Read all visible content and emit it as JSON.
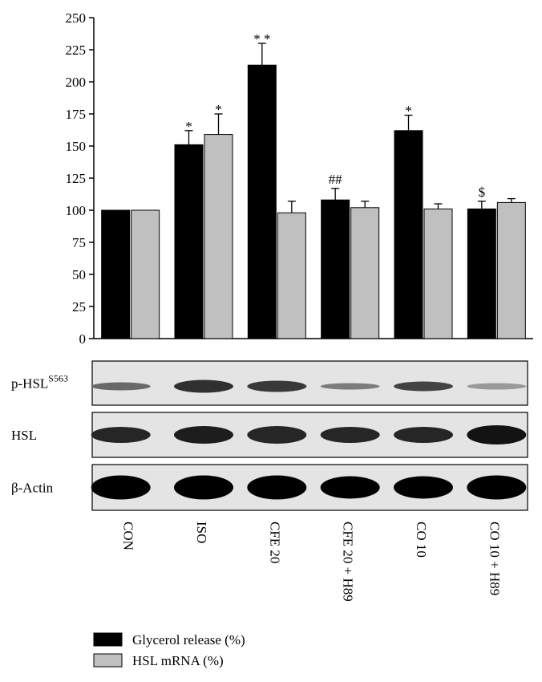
{
  "chart_data": {
    "type": "bar",
    "categories": [
      "CON",
      "ISO",
      "CFE 20",
      "CFE 20 + H89",
      "CO 10",
      "CO 10 + H89"
    ],
    "series": [
      {
        "name": "Glycerol release (%)",
        "color": "#000000",
        "values": [
          100,
          151,
          213,
          108,
          162,
          101
        ],
        "errors": [
          0,
          11,
          17,
          9,
          12,
          6
        ]
      },
      {
        "name": "HSL mRNA (%)",
        "color": "#c0c0c0",
        "values": [
          100,
          159,
          98,
          102,
          101,
          106
        ],
        "errors": [
          0,
          16,
          9,
          5,
          4,
          3
        ]
      }
    ],
    "annotations": [
      {
        "text": "*",
        "series": 0,
        "category": 1
      },
      {
        "text": "*",
        "series": 1,
        "category": 1
      },
      {
        "text": "* *",
        "series": 0,
        "category": 2
      },
      {
        "text": "##",
        "series": 0,
        "category": 3
      },
      {
        "text": "*",
        "series": 0,
        "category": 4
      },
      {
        "text": "$",
        "series": 0,
        "category": 5
      }
    ],
    "ylim": [
      0,
      250
    ],
    "yticks": [
      0,
      25,
      50,
      75,
      100,
      125,
      150,
      175,
      200,
      225,
      250
    ],
    "grid": false,
    "blot": [
      {
        "label": "p-HSL",
        "superscript": "S563"
      },
      {
        "label": "HSL"
      },
      {
        "label": "β-Actin"
      }
    ]
  }
}
